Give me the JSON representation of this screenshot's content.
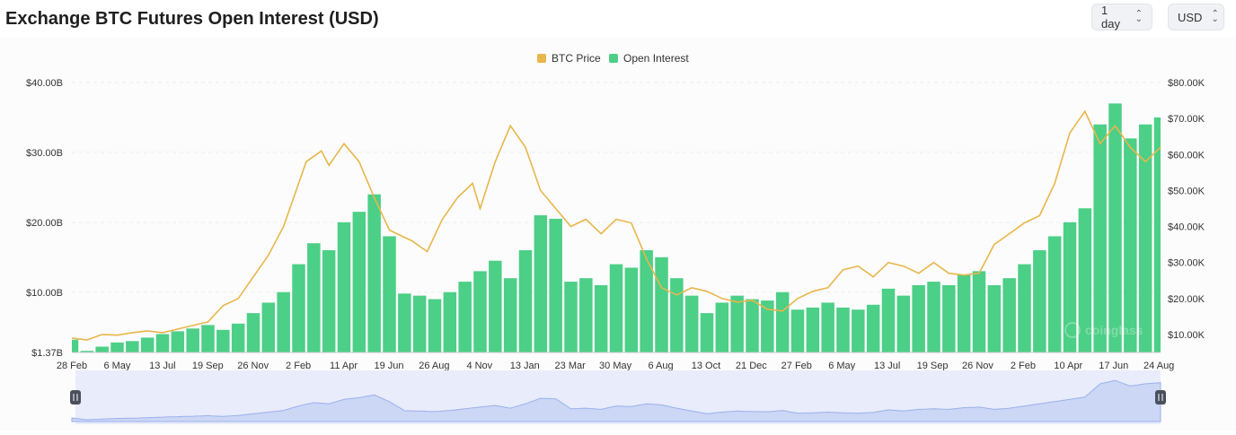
{
  "header": {
    "title": "Exchange BTC Futures Open Interest (USD)",
    "interval_select": {
      "value": "1 day"
    },
    "currency_select": {
      "value": "USD"
    }
  },
  "watermark": "coinglass",
  "colors": {
    "price": "#e8b64b",
    "open_interest": "#4ccf86",
    "navigator_fill": "#ccd7f5",
    "navigator_line": "#9bb0ec"
  },
  "chart_data": {
    "type": "bar",
    "title": "Exchange BTC Futures Open Interest (USD)",
    "legend_position": "top-center",
    "grid": true,
    "x_labels": [
      "28 Feb",
      "6 May",
      "13 Jul",
      "19 Sep",
      "26 Nov",
      "2 Feb",
      "11 Apr",
      "19 Jun",
      "26 Aug",
      "4 Nov",
      "13 Jan",
      "23 Mar",
      "30 May",
      "6 Aug",
      "13 Oct",
      "21 Dec",
      "27 Feb",
      "6 May",
      "13 Jul",
      "19 Sep",
      "26 Nov",
      "2 Feb",
      "10 Apr",
      "17 Jun",
      "24 Aug"
    ],
    "y_left": {
      "ticks": [
        "$1.37B",
        "$10.00B",
        "$20.00B",
        "$30.00B",
        "$40.00B"
      ],
      "min": 1.37,
      "max": 40
    },
    "y_right": {
      "ticks": [
        "$10.00K",
        "$20.00K",
        "$30.00K",
        "$40.00K",
        "$50.00K",
        "$60.00K",
        "$70.00K",
        "$80.00K"
      ],
      "min": 5,
      "max": 80
    },
    "series": [
      {
        "name": "Open Interest",
        "type": "bar",
        "axis": "left",
        "unit": "B",
        "x": [
          0,
          2,
          4,
          6,
          8,
          10,
          12,
          14,
          16,
          18,
          20,
          22,
          24,
          26,
          28,
          30,
          32,
          34,
          36,
          38,
          40,
          42,
          44,
          46,
          48,
          50,
          52,
          54,
          56,
          58,
          60,
          62,
          64,
          66,
          68,
          70,
          72,
          74,
          76,
          78,
          80,
          82,
          84,
          86,
          88,
          90,
          92,
          94,
          96,
          98,
          100,
          102,
          104,
          106,
          108,
          110,
          112,
          114,
          116,
          118,
          120,
          122,
          124,
          126,
          128,
          130,
          132,
          134,
          136,
          138,
          140,
          142,
          144
        ],
        "values": [
          3.2,
          1.6,
          2.2,
          2.8,
          3.0,
          3.5,
          4.0,
          4.4,
          4.8,
          5.3,
          4.6,
          5.5,
          7.0,
          8.5,
          10.0,
          14.0,
          17.0,
          16.0,
          20.0,
          21.5,
          24.0,
          18.0,
          9.8,
          9.5,
          9.0,
          10.0,
          11.5,
          13.0,
          14.5,
          12.0,
          16.0,
          21.0,
          20.5,
          11.5,
          12.0,
          11.0,
          14.0,
          13.5,
          16.0,
          15.0,
          12.0,
          9.5,
          7.0,
          8.5,
          9.5,
          9.0,
          8.8,
          10.0,
          7.5,
          7.8,
          8.5,
          7.8,
          7.5,
          8.2,
          10.5,
          9.5,
          11.0,
          11.5,
          11.0,
          12.5,
          13.0,
          11.0,
          12.0,
          14.0,
          16.0,
          18.0,
          20.0,
          22.0,
          34.0,
          37.0,
          32.0,
          34.0,
          35.0
        ]
      },
      {
        "name": "BTC Price",
        "type": "line",
        "axis": "right",
        "unit": "K",
        "x": [
          0,
          2,
          4,
          6,
          8,
          10,
          12,
          14,
          16,
          18,
          20,
          22,
          24,
          26,
          28,
          30,
          31,
          33,
          34,
          36,
          38,
          40,
          42,
          43,
          45,
          47,
          49,
          51,
          53,
          54,
          56,
          58,
          60,
          62,
          64,
          66,
          68,
          70,
          72,
          74,
          76,
          78,
          80,
          82,
          84,
          86,
          88,
          90,
          92,
          94,
          96,
          98,
          100,
          102,
          104,
          106,
          108,
          110,
          112,
          114,
          116,
          118,
          120,
          122,
          124,
          126,
          128,
          130,
          132,
          134,
          136,
          138,
          140,
          142,
          144
        ],
        "values": [
          9.0,
          8.5,
          10.0,
          9.8,
          10.5,
          11.0,
          10.5,
          11.5,
          12.5,
          13.5,
          18.0,
          20.0,
          26.0,
          32.0,
          40.0,
          52.0,
          58.0,
          61.0,
          57.0,
          63.0,
          58.0,
          48.0,
          39.0,
          38.0,
          36.0,
          33.0,
          42.0,
          48.0,
          52.0,
          45.0,
          58.0,
          68.0,
          62.0,
          50.0,
          45.0,
          40.0,
          42.0,
          38.0,
          42.0,
          41.0,
          31.0,
          23.0,
          21.0,
          23.0,
          22.0,
          20.0,
          19.0,
          19.5,
          17.0,
          16.5,
          20.0,
          22.0,
          23.0,
          28.0,
          29.0,
          26.0,
          30.0,
          29.0,
          27.0,
          30.0,
          27.0,
          26.5,
          27.0,
          35.0,
          38.0,
          41.0,
          43.0,
          52.0,
          66.0,
          72.0,
          63.0,
          68.0,
          62.0,
          58.0,
          62.0
        ]
      }
    ]
  }
}
